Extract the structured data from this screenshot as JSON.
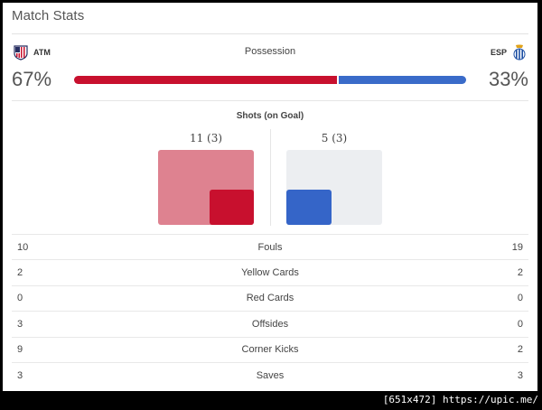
{
  "title": "Match Stats",
  "possession": {
    "label": "Possession",
    "home": {
      "abbr": "ATM",
      "pct_text": "67%",
      "pct": 67,
      "color": "#c8102e",
      "crest": "atletico-crest-icon"
    },
    "away": {
      "abbr": "ESP",
      "pct_text": "33%",
      "pct": 33,
      "color": "#3a6bc9",
      "crest": "espanyol-crest-icon"
    }
  },
  "shots": {
    "title": "Shots (on Goal)",
    "home": {
      "text": "11 (3)",
      "total": 11,
      "on_goal": 3
    },
    "away": {
      "text": "5 (3)",
      "total": 5,
      "on_goal": 3
    }
  },
  "stats": [
    {
      "label": "Fouls",
      "home": "10",
      "away": "19"
    },
    {
      "label": "Yellow Cards",
      "home": "2",
      "away": "2"
    },
    {
      "label": "Red Cards",
      "home": "0",
      "away": "0"
    },
    {
      "label": "Offsides",
      "home": "3",
      "away": "0"
    },
    {
      "label": "Corner Kicks",
      "home": "9",
      "away": "2"
    },
    {
      "label": "Saves",
      "home": "3",
      "away": "3"
    }
  ],
  "watermark": "[651x472] https://upic.me/"
}
